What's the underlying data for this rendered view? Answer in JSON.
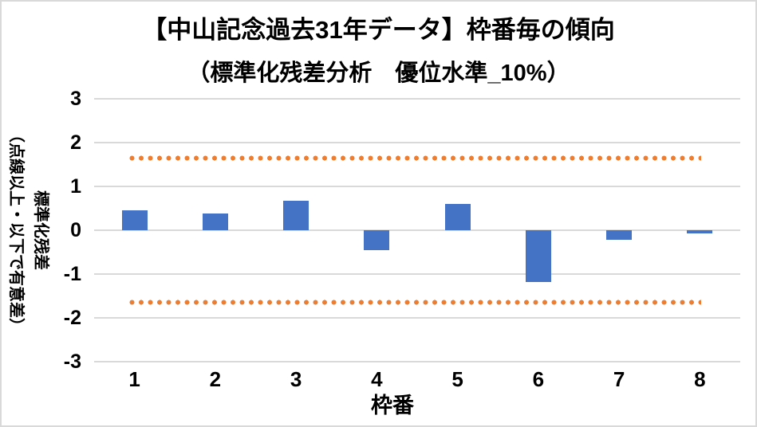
{
  "chart_data": {
    "type": "bar",
    "title": "【中山記念過去31年データ】枠番毎の傾向",
    "subtitle": "（標準化残差分析　優位水準_10%）",
    "xlabel": "枠番",
    "ylabel_line1": "標準化残差",
    "ylabel_line2": "（点線以上・以下で有意差）",
    "categories": [
      "1",
      "2",
      "3",
      "4",
      "5",
      "6",
      "7",
      "8"
    ],
    "values": [
      0.45,
      0.38,
      0.68,
      -0.45,
      0.6,
      -1.18,
      -0.22,
      -0.08
    ],
    "series_name": "標準化残差",
    "thresholds": {
      "upper": 1.645,
      "lower": -1.645,
      "line_style": "dotted"
    },
    "yticks": [
      3,
      2,
      1,
      0,
      -1,
      -2,
      -3
    ],
    "ylim": [
      -3,
      3
    ],
    "grid": true,
    "legend": "none",
    "colors": {
      "bar": "#4472C4",
      "threshold": "#ED7D31",
      "gridline": "#D9D9D9",
      "text": "#000000",
      "frame_border": "#D9D9D9",
      "background": "#FFFFFF"
    }
  }
}
